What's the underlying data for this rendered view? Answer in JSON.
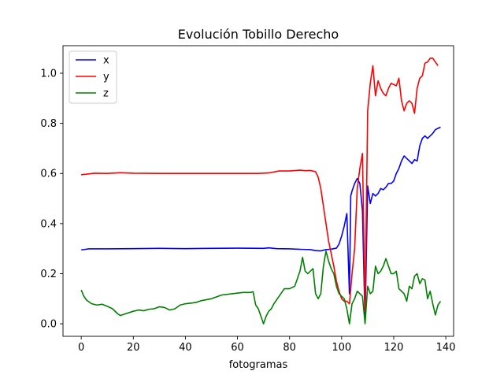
{
  "chart_data": {
    "type": "line",
    "title": "Evolución Tobillo Derecho",
    "xlabel": "fotogramas",
    "ylabel": "",
    "xlim": [
      -7,
      143
    ],
    "ylim": [
      -0.05,
      1.11
    ],
    "xticks": [
      0,
      20,
      40,
      60,
      80,
      100,
      120,
      140
    ],
    "yticks": [
      0.0,
      0.2,
      0.4,
      0.6,
      0.8,
      1.0
    ],
    "xtick_labels": [
      "0",
      "20",
      "40",
      "60",
      "80",
      "100",
      "120",
      "140"
    ],
    "ytick_labels": [
      "0.0",
      "0.2",
      "0.4",
      "0.6",
      "0.8",
      "1.0"
    ],
    "grid": false,
    "legend_position": "top-left",
    "series": [
      {
        "name": "x",
        "color": "#0000ff",
        "points": [
          [
            0,
            0.295
          ],
          [
            3,
            0.299
          ],
          [
            10,
            0.299
          ],
          [
            20,
            0.3
          ],
          [
            30,
            0.301
          ],
          [
            40,
            0.3
          ],
          [
            50,
            0.301
          ],
          [
            60,
            0.302
          ],
          [
            70,
            0.301
          ],
          [
            72,
            0.303
          ],
          [
            75,
            0.3
          ],
          [
            80,
            0.299
          ],
          [
            85,
            0.297
          ],
          [
            88,
            0.296
          ],
          [
            90,
            0.292
          ],
          [
            92,
            0.291
          ],
          [
            94,
            0.296
          ],
          [
            96,
            0.298
          ],
          [
            98,
            0.302
          ],
          [
            99,
            0.318
          ],
          [
            100,
            0.35
          ],
          [
            101,
            0.39
          ],
          [
            102,
            0.44
          ],
          [
            103,
            0.12
          ],
          [
            103.5,
            0.51
          ],
          [
            104,
            0.53
          ],
          [
            105,
            0.56
          ],
          [
            106,
            0.58
          ],
          [
            107,
            0.56
          ],
          [
            108,
            0.45
          ],
          [
            109,
            0.01
          ],
          [
            110,
            0.55
          ],
          [
            111,
            0.48
          ],
          [
            112,
            0.52
          ],
          [
            113,
            0.51
          ],
          [
            114,
            0.52
          ],
          [
            115,
            0.54
          ],
          [
            116,
            0.535
          ],
          [
            117,
            0.545
          ],
          [
            118,
            0.56
          ],
          [
            119,
            0.56
          ],
          [
            120,
            0.57
          ],
          [
            121,
            0.6
          ],
          [
            122,
            0.62
          ],
          [
            123,
            0.65
          ],
          [
            124,
            0.67
          ],
          [
            125,
            0.66
          ],
          [
            126,
            0.65
          ],
          [
            127,
            0.64
          ],
          [
            128,
            0.655
          ],
          [
            129,
            0.65
          ],
          [
            130,
            0.71
          ],
          [
            131,
            0.74
          ],
          [
            132,
            0.75
          ],
          [
            133,
            0.74
          ],
          [
            134,
            0.75
          ],
          [
            135,
            0.76
          ],
          [
            136,
            0.775
          ],
          [
            137,
            0.78
          ],
          [
            138,
            0.785
          ]
        ]
      },
      {
        "name": "y",
        "color": "#ff0000",
        "points": [
          [
            0,
            0.595
          ],
          [
            2,
            0.597
          ],
          [
            5,
            0.601
          ],
          [
            10,
            0.6
          ],
          [
            15,
            0.603
          ],
          [
            20,
            0.601
          ],
          [
            30,
            0.6
          ],
          [
            40,
            0.6
          ],
          [
            50,
            0.6
          ],
          [
            60,
            0.6
          ],
          [
            68,
            0.6
          ],
          [
            72,
            0.602
          ],
          [
            76,
            0.61
          ],
          [
            80,
            0.61
          ],
          [
            84,
            0.613
          ],
          [
            86,
            0.611
          ],
          [
            88,
            0.612
          ],
          [
            90,
            0.607
          ],
          [
            91,
            0.585
          ],
          [
            92,
            0.54
          ],
          [
            93,
            0.47
          ],
          [
            94,
            0.4
          ],
          [
            95,
            0.33
          ],
          [
            96,
            0.28
          ],
          [
            97,
            0.23
          ],
          [
            98,
            0.17
          ],
          [
            99,
            0.13
          ],
          [
            100,
            0.1
          ],
          [
            101,
            0.09
          ],
          [
            102,
            0.09
          ],
          [
            103,
            0.08
          ],
          [
            104,
            0.2
          ],
          [
            105,
            0.3
          ],
          [
            106,
            0.54
          ],
          [
            107,
            0.62
          ],
          [
            108,
            0.68
          ],
          [
            109,
            0.05
          ],
          [
            110,
            0.85
          ],
          [
            111,
            0.96
          ],
          [
            112,
            1.03
          ],
          [
            113,
            0.91
          ],
          [
            114,
            0.97
          ],
          [
            115,
            0.94
          ],
          [
            116,
            0.92
          ],
          [
            117,
            0.91
          ],
          [
            118,
            0.94
          ],
          [
            119,
            0.96
          ],
          [
            120,
            0.955
          ],
          [
            121,
            0.95
          ],
          [
            122,
            0.98
          ],
          [
            123,
            0.89
          ],
          [
            124,
            0.85
          ],
          [
            125,
            0.88
          ],
          [
            126,
            0.89
          ],
          [
            127,
            0.88
          ],
          [
            128,
            0.84
          ],
          [
            129,
            0.94
          ],
          [
            130,
            0.98
          ],
          [
            131,
            0.99
          ],
          [
            132,
            1.04
          ],
          [
            133,
            1.045
          ],
          [
            134,
            1.06
          ],
          [
            135,
            1.06
          ],
          [
            136,
            1.045
          ],
          [
            137,
            1.03
          ]
        ]
      },
      {
        "name": "z",
        "color": "#008000",
        "points": [
          [
            0,
            0.135
          ],
          [
            1,
            0.11
          ],
          [
            2,
            0.095
          ],
          [
            4,
            0.08
          ],
          [
            6,
            0.075
          ],
          [
            8,
            0.078
          ],
          [
            10,
            0.07
          ],
          [
            12,
            0.06
          ],
          [
            14,
            0.04
          ],
          [
            15,
            0.033
          ],
          [
            17,
            0.04
          ],
          [
            20,
            0.05
          ],
          [
            22,
            0.055
          ],
          [
            24,
            0.052
          ],
          [
            26,
            0.058
          ],
          [
            28,
            0.06
          ],
          [
            30,
            0.068
          ],
          [
            32,
            0.065
          ],
          [
            34,
            0.055
          ],
          [
            36,
            0.06
          ],
          [
            38,
            0.075
          ],
          [
            40,
            0.08
          ],
          [
            44,
            0.085
          ],
          [
            46,
            0.092
          ],
          [
            50,
            0.1
          ],
          [
            54,
            0.115
          ],
          [
            58,
            0.12
          ],
          [
            62,
            0.125
          ],
          [
            65,
            0.125
          ],
          [
            66,
            0.128
          ],
          [
            67,
            0.075
          ],
          [
            68,
            0.06
          ],
          [
            69,
            0.03
          ],
          [
            70,
            0.0
          ],
          [
            71,
            0.03
          ],
          [
            72,
            0.05
          ],
          [
            73,
            0.06
          ],
          [
            74,
            0.08
          ],
          [
            76,
            0.11
          ],
          [
            78,
            0.14
          ],
          [
            80,
            0.14
          ],
          [
            82,
            0.15
          ],
          [
            83,
            0.18
          ],
          [
            84,
            0.21
          ],
          [
            85,
            0.265
          ],
          [
            86,
            0.21
          ],
          [
            87,
            0.2
          ],
          [
            88,
            0.21
          ],
          [
            89,
            0.22
          ],
          [
            90,
            0.12
          ],
          [
            91,
            0.1
          ],
          [
            92,
            0.12
          ],
          [
            93,
            0.23
          ],
          [
            94,
            0.29
          ],
          [
            95,
            0.25
          ],
          [
            96,
            0.22
          ],
          [
            97,
            0.2
          ],
          [
            98,
            0.15
          ],
          [
            99,
            0.12
          ],
          [
            100,
            0.11
          ],
          [
            101,
            0.1
          ],
          [
            102,
            0.06
          ],
          [
            103,
            0.0
          ],
          [
            104,
            0.08
          ],
          [
            105,
            0.1
          ],
          [
            106,
            0.13
          ],
          [
            107,
            0.12
          ],
          [
            108,
            0.11
          ],
          [
            109,
            0.0
          ],
          [
            110,
            0.15
          ],
          [
            111,
            0.12
          ],
          [
            112,
            0.13
          ],
          [
            113,
            0.23
          ],
          [
            114,
            0.2
          ],
          [
            115,
            0.21
          ],
          [
            116,
            0.23
          ],
          [
            117,
            0.26
          ],
          [
            118,
            0.23
          ],
          [
            119,
            0.2
          ],
          [
            120,
            0.2
          ],
          [
            121,
            0.21
          ],
          [
            122,
            0.14
          ],
          [
            123,
            0.13
          ],
          [
            124,
            0.12
          ],
          [
            125,
            0.09
          ],
          [
            126,
            0.15
          ],
          [
            127,
            0.14
          ],
          [
            128,
            0.19
          ],
          [
            129,
            0.2
          ],
          [
            130,
            0.16
          ],
          [
            131,
            0.18
          ],
          [
            132,
            0.175
          ],
          [
            133,
            0.1
          ],
          [
            134,
            0.13
          ],
          [
            135,
            0.08
          ],
          [
            136,
            0.035
          ],
          [
            137,
            0.075
          ],
          [
            138,
            0.09
          ]
        ]
      }
    ]
  }
}
